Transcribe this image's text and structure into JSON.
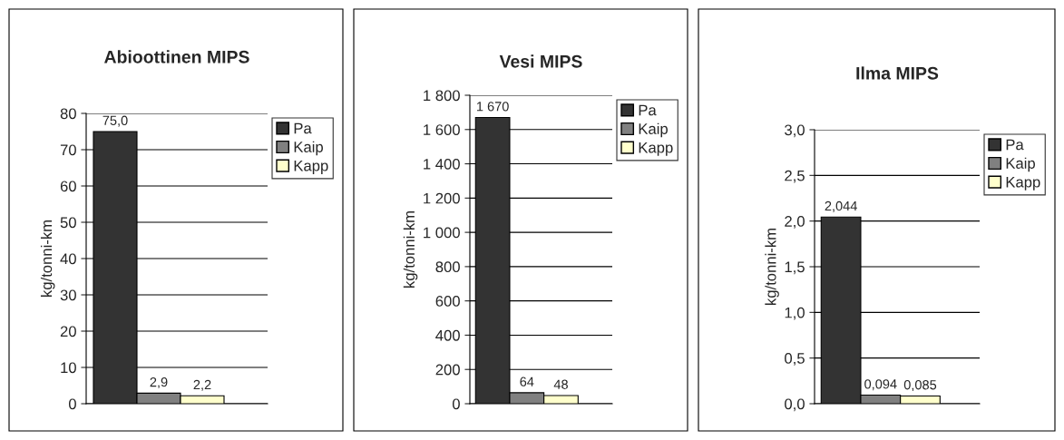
{
  "chart_data": [
    {
      "type": "bar",
      "title": "Abioottinen MIPS",
      "ylabel": "kg/tonni-km",
      "categories": [
        null
      ],
      "series": [
        {
          "name": "Pa",
          "color": "#333333",
          "values": [
            75.0
          ],
          "value_labels": [
            "75,0"
          ]
        },
        {
          "name": "Kaip",
          "color": "#808080",
          "values": [
            2.9
          ],
          "value_labels": [
            "2,9"
          ]
        },
        {
          "name": "Kapp",
          "color": "#ffffcc",
          "values": [
            2.2
          ],
          "value_labels": [
            "2,2"
          ]
        }
      ],
      "ylim": [
        0,
        80
      ],
      "yticks": [
        0,
        10,
        20,
        30,
        40,
        50,
        60,
        70,
        80
      ],
      "grid": "y",
      "legend": "right"
    },
    {
      "type": "bar",
      "title": "Vesi MIPS",
      "ylabel": "kg/tonni-km",
      "categories": [
        null
      ],
      "series": [
        {
          "name": "Pa",
          "color": "#333333",
          "values": [
            1670
          ],
          "value_labels": [
            "1 670"
          ]
        },
        {
          "name": "Kaip",
          "color": "#808080",
          "values": [
            64
          ],
          "value_labels": [
            "64"
          ]
        },
        {
          "name": "Kapp",
          "color": "#ffffcc",
          "values": [
            48
          ],
          "value_labels": [
            "48"
          ]
        }
      ],
      "ylim": [
        0,
        1800
      ],
      "yticks": [
        0,
        200,
        400,
        600,
        800,
        {
          "value": 1000,
          "label": "1 000"
        },
        {
          "value": 1200,
          "label": "1 200"
        },
        {
          "value": 1400,
          "label": "1 400"
        },
        {
          "value": 1600,
          "label": "1 600"
        },
        {
          "value": 1800,
          "label": "1 800"
        }
      ],
      "grid": "y",
      "legend": "right"
    },
    {
      "type": "bar",
      "title": "Ilma MIPS",
      "ylabel": "kg/tonni-km",
      "categories": [
        null
      ],
      "series": [
        {
          "name": "Pa",
          "color": "#333333",
          "values": [
            2.044
          ],
          "value_labels": [
            "2,044"
          ]
        },
        {
          "name": "Kaip",
          "color": "#808080",
          "values": [
            0.094
          ],
          "value_labels": [
            "0,094"
          ]
        },
        {
          "name": "Kapp",
          "color": "#ffffcc",
          "values": [
            0.085
          ],
          "value_labels": [
            "0,085"
          ]
        }
      ],
      "ylim": [
        0,
        3.0
      ],
      "yticks": [
        {
          "value": 0,
          "label": "0,0"
        },
        {
          "value": 0.5,
          "label": "0,5"
        },
        {
          "value": 1.0,
          "label": "1,0"
        },
        {
          "value": 1.5,
          "label": "1,5"
        },
        {
          "value": 2.0,
          "label": "2,0"
        },
        {
          "value": 2.5,
          "label": "2,5"
        },
        {
          "value": 3.0,
          "label": "3,0"
        }
      ],
      "grid": "y",
      "legend": "right"
    }
  ]
}
